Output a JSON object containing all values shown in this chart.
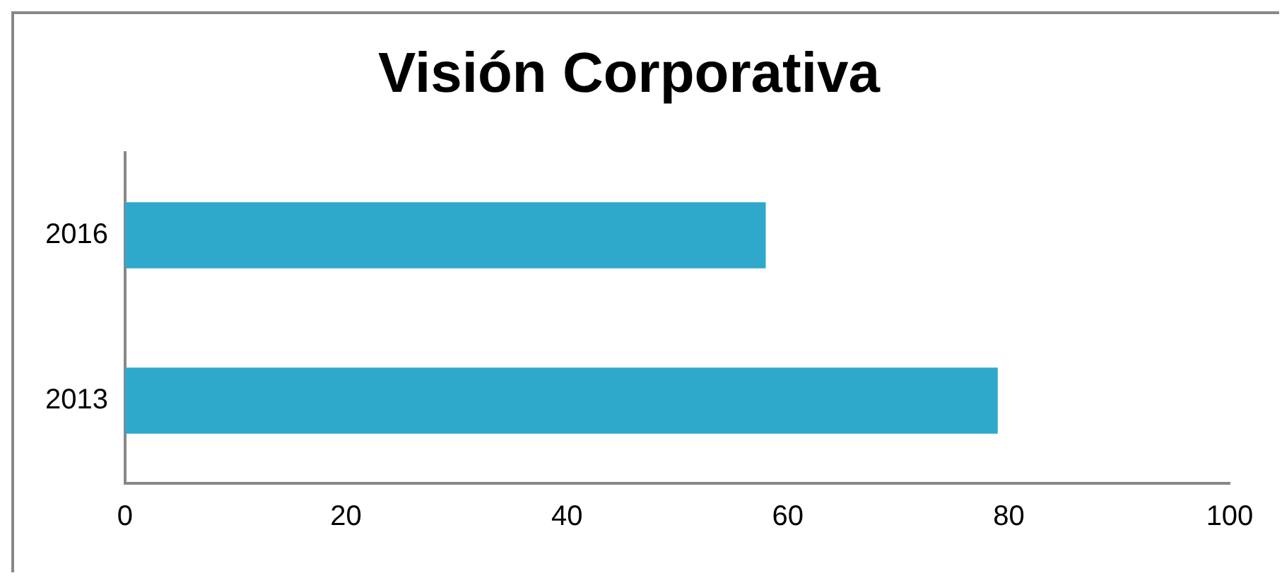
{
  "chart_data": {
    "type": "bar",
    "title": "Visión Corporativa",
    "orientation": "horizontal",
    "categories": [
      "2016",
      "2013"
    ],
    "values": [
      58,
      79
    ],
    "color": "#2ea9cc",
    "xlim": [
      0,
      100
    ],
    "xticks": [
      0,
      20,
      40,
      60,
      80,
      100
    ],
    "grid": false,
    "legend": false
  }
}
